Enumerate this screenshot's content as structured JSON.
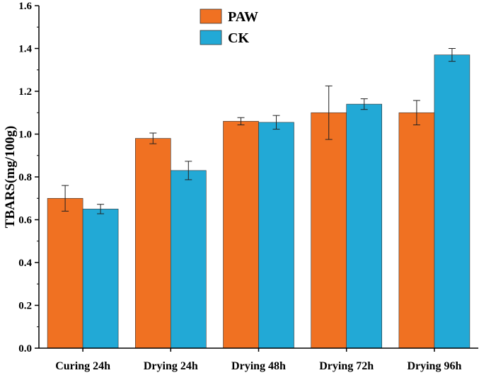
{
  "chart_data": {
    "type": "bar",
    "title": "",
    "xlabel": "",
    "ylabel": "TBARS(mg/100g)",
    "ylim": [
      0,
      1.6
    ],
    "yticks": [
      "0.0",
      "0.2",
      "0.4",
      "0.6",
      "0.8",
      "1.0",
      "1.2",
      "1.4",
      "1.6"
    ],
    "categories": [
      "Curing 24h",
      "Drying 24h",
      "Drying 48h",
      "Drying 72h",
      "Drying 96h"
    ],
    "legend_position": "top-left",
    "series": [
      {
        "name": "PAW",
        "color": "#F07122",
        "values": [
          0.7,
          0.98,
          1.06,
          1.1,
          1.1
        ],
        "errors": [
          0.06,
          0.025,
          0.017,
          0.125,
          0.057
        ]
      },
      {
        "name": "CK",
        "color": "#22A9D6",
        "values": [
          0.65,
          0.83,
          1.055,
          1.14,
          1.37
        ],
        "errors": [
          0.022,
          0.043,
          0.032,
          0.025,
          0.03
        ]
      }
    ]
  }
}
